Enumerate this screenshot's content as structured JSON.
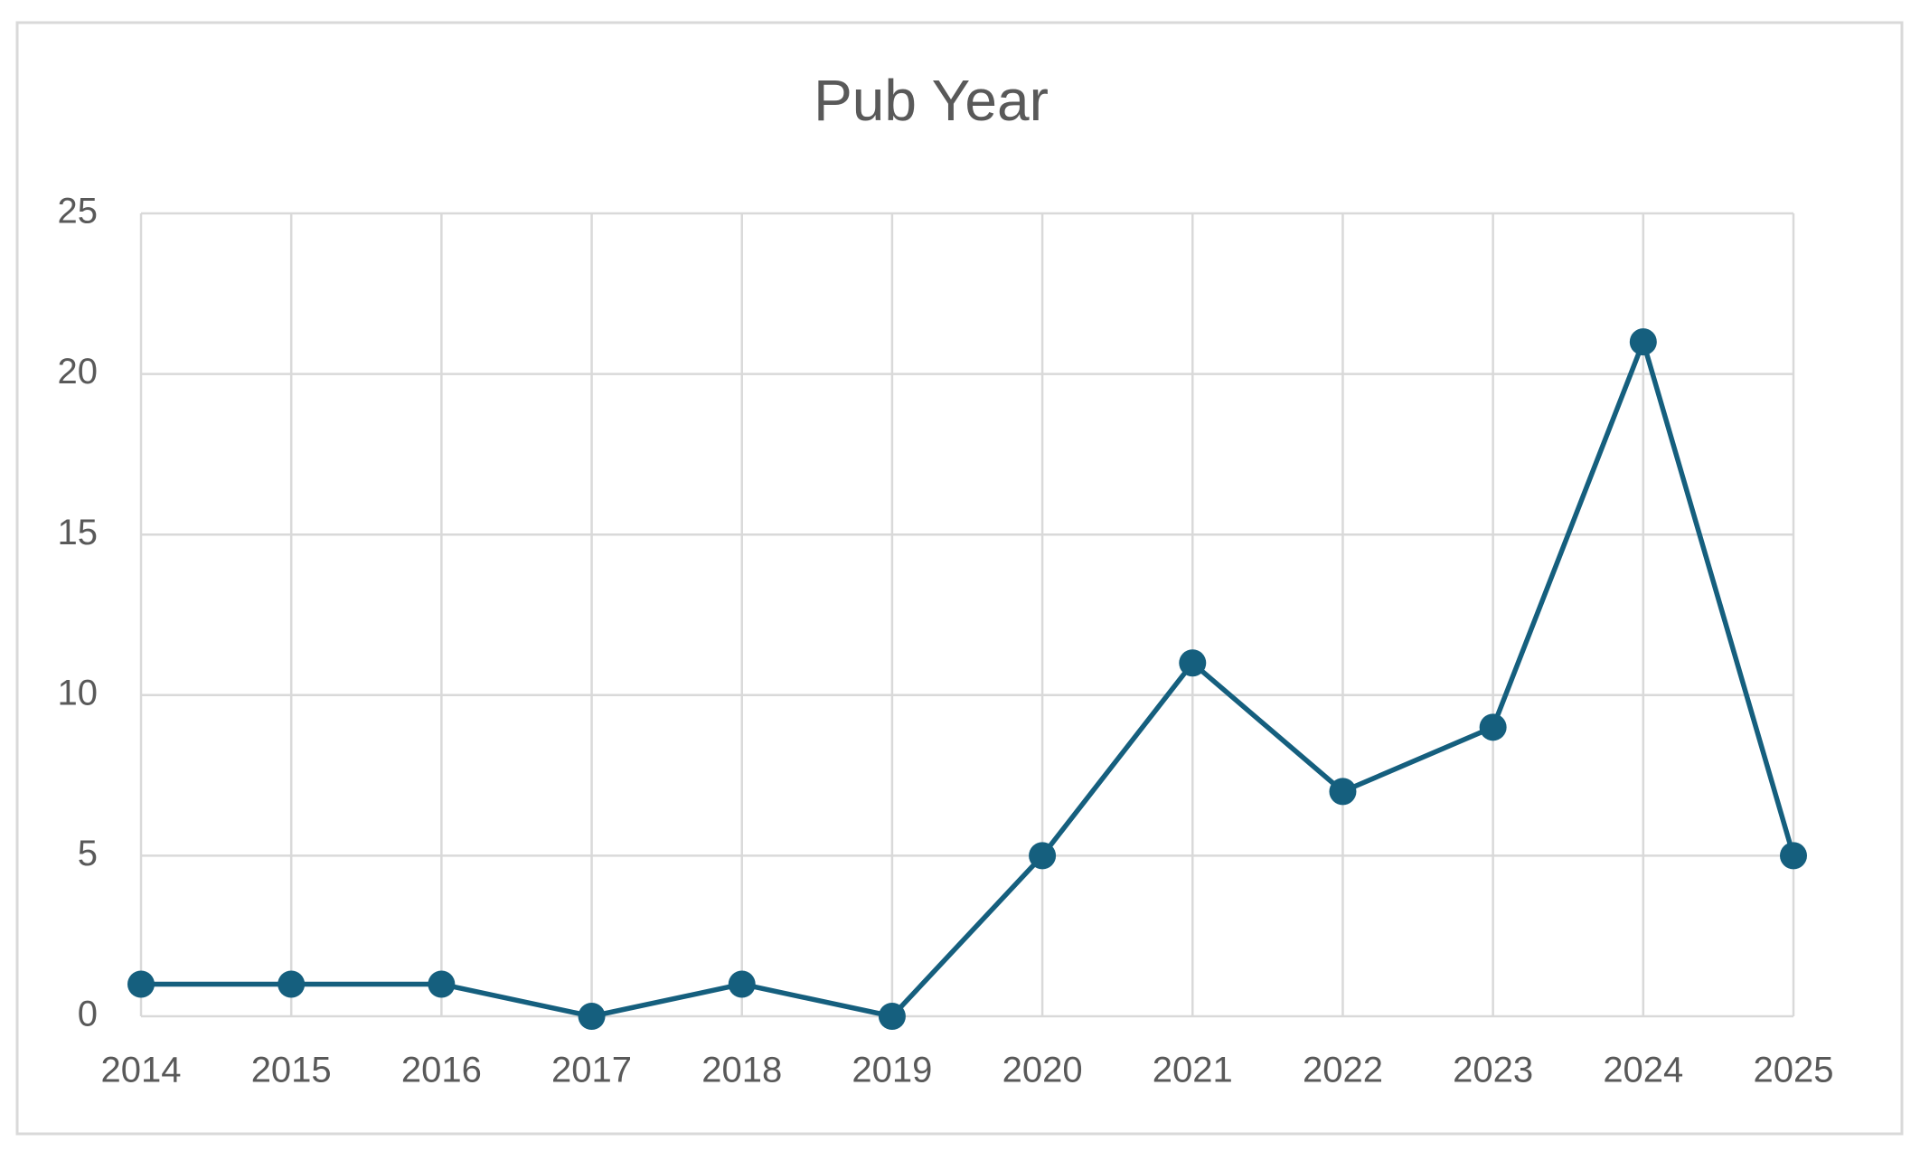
{
  "chart_data": {
    "type": "line",
    "title": "Pub Year",
    "x": [
      2014,
      2015,
      2016,
      2017,
      2018,
      2019,
      2020,
      2021,
      2022,
      2023,
      2024,
      2025
    ],
    "values": [
      1,
      1,
      1,
      0,
      1,
      0,
      5,
      11,
      7,
      9,
      21,
      5
    ],
    "color": "#155f7e",
    "xlim": [
      2014,
      2025
    ],
    "xticks": [
      2014,
      2015,
      2016,
      2017,
      2018,
      2019,
      2020,
      2021,
      2022,
      2023,
      2024,
      2025
    ],
    "ylim": [
      0,
      25
    ],
    "yticks": [
      0,
      5,
      10,
      15,
      20,
      25
    ],
    "grid": true
  }
}
